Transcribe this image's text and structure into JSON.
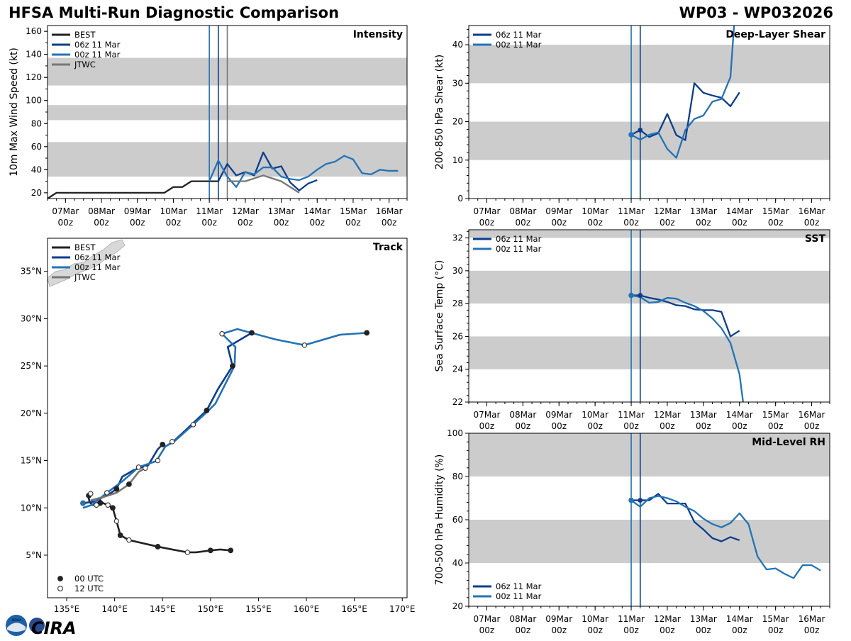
{
  "header": {
    "title_left": "HFSA Multi-Run Diagnostic Comparison",
    "title_right": "WP03 - WP032026"
  },
  "logo": {
    "text": "CIRA",
    "noaa_text": "NOAA"
  },
  "colors": {
    "best": "#222222",
    "run06": "#0b3d8c",
    "run00": "#2373b5",
    "jtwc": "#777777",
    "band": "#cccccc"
  },
  "date_ticks": [
    {
      "day": 7,
      "label": "07Mar",
      "sub": "00z"
    },
    {
      "day": 8,
      "label": "08Mar",
      "sub": "00z"
    },
    {
      "day": 9,
      "label": "09Mar",
      "sub": "00z"
    },
    {
      "day": 10,
      "label": "10Mar",
      "sub": "00z"
    },
    {
      "day": 11,
      "label": "11Mar",
      "sub": "00z"
    },
    {
      "day": 12,
      "label": "12Mar",
      "sub": "00z"
    },
    {
      "day": 13,
      "label": "13Mar",
      "sub": "00z"
    },
    {
      "day": 14,
      "label": "14Mar",
      "sub": "00z"
    },
    {
      "day": 15,
      "label": "15Mar",
      "sub": "00z"
    },
    {
      "day": 16,
      "label": "16Mar",
      "sub": "00z"
    }
  ],
  "chart_data": [
    {
      "id": "intensity",
      "type": "line",
      "title": "Intensity",
      "ylabel": "10m Max Wind Speed (kt)",
      "xlim": [
        6.5,
        16.5
      ],
      "ylim": [
        15,
        165
      ],
      "yticks": [
        20,
        40,
        60,
        80,
        100,
        120,
        140,
        160
      ],
      "bands": [
        [
          34,
          64
        ],
        [
          83,
          96
        ],
        [
          113,
          137
        ]
      ],
      "vlines": [
        {
          "x": 11.0,
          "series": "00z 11 Mar"
        },
        {
          "x": 11.25,
          "series": "06z 11 Mar"
        },
        {
          "x": 11.5,
          "series": "JTWC"
        }
      ],
      "legend": [
        "BEST",
        "06z 11 Mar",
        "00z 11 Mar",
        "JTWC"
      ],
      "legend_position": "top-left",
      "series": [
        {
          "name": "BEST",
          "x": [
            6.5,
            6.75,
            7.0,
            7.5,
            8.0,
            8.5,
            9.0,
            9.5,
            9.75,
            10.0,
            10.25,
            10.5,
            10.75,
            11.0,
            11.25
          ],
          "y": [
            15,
            20,
            20,
            20,
            20,
            20,
            20,
            20,
            20,
            25,
            25,
            30,
            30,
            30,
            30
          ]
        },
        {
          "name": "06z 11 Mar",
          "x": [
            11.25,
            11.5,
            11.75,
            12.0,
            12.25,
            12.5,
            12.75,
            13.0,
            13.25,
            13.5,
            13.75,
            14.0
          ],
          "y": [
            30,
            45,
            35,
            38,
            35,
            55,
            41,
            43,
            29,
            22,
            28,
            31
          ]
        },
        {
          "name": "00z 11 Mar",
          "x": [
            11.0,
            11.25,
            11.5,
            11.75,
            12.0,
            12.25,
            12.5,
            12.75,
            13.0,
            13.25,
            13.5,
            13.75,
            14.0,
            14.25,
            14.5,
            14.75,
            15.0,
            15.25,
            15.5,
            15.75,
            16.0,
            16.25
          ],
          "y": [
            30,
            48,
            34,
            25,
            38,
            36,
            42,
            42,
            34,
            32,
            31,
            34,
            40,
            45,
            47,
            52,
            49,
            37,
            36,
            40,
            39,
            39
          ]
        },
        {
          "name": "JTWC",
          "x": [
            11.5,
            12.0,
            12.5,
            13.0,
            13.5
          ],
          "y": [
            30,
            30,
            35,
            30,
            20
          ]
        }
      ]
    },
    {
      "id": "shear",
      "type": "line",
      "title": "Deep-Layer Shear",
      "ylabel": "200-850 hPa Shear (kt)",
      "xlim": [
        6.5,
        16.5
      ],
      "ylim": [
        0,
        45
      ],
      "yticks": [
        0,
        10,
        20,
        30,
        40
      ],
      "bands": [
        [
          10,
          20
        ],
        [
          30,
          40
        ]
      ],
      "vlines": [
        {
          "x": 11.0,
          "series": "00z 11 Mar"
        },
        {
          "x": 11.25,
          "series": "06z 11 Mar"
        }
      ],
      "legend": [
        "06z 11 Mar",
        "00z 11 Mar"
      ],
      "legend_position": "top-left",
      "series": [
        {
          "name": "06z 11 Mar",
          "x": [
            11.0,
            11.25,
            11.5,
            11.75,
            12.0,
            12.25,
            12.5,
            12.75,
            13.0,
            13.25,
            13.5,
            13.75,
            14.0
          ],
          "y": [
            16.6,
            17.8,
            16.0,
            17.0,
            22.0,
            16.5,
            15.2,
            30.0,
            27.5,
            26.8,
            26.2,
            24.0,
            27.6
          ]
        },
        {
          "name": "00z 11 Mar",
          "x": [
            11.0,
            11.25,
            11.5,
            11.75,
            12.0,
            12.25,
            12.5,
            12.75,
            13.0,
            13.25,
            13.5,
            13.75,
            13.85
          ],
          "y": [
            16.6,
            15.3,
            16.6,
            17.2,
            12.9,
            10.6,
            17.8,
            20.7,
            21.6,
            25.2,
            25.9,
            31.6,
            45.0
          ]
        }
      ]
    },
    {
      "id": "sst",
      "type": "line",
      "title": "SST",
      "ylabel": "Sea Surface Temp (°C)",
      "xlim": [
        6.5,
        16.5
      ],
      "ylim": [
        22,
        32.5
      ],
      "yticks": [
        22,
        24,
        26,
        28,
        30,
        32
      ],
      "bands": [
        [
          24,
          26
        ],
        [
          28,
          30
        ],
        [
          32,
          32.5
        ]
      ],
      "vlines": [
        {
          "x": 11.0,
          "series": "00z 11 Mar"
        },
        {
          "x": 11.25,
          "series": "06z 11 Mar"
        }
      ],
      "legend": [
        "06z 11 Mar",
        "00z 11 Mar"
      ],
      "legend_position": "top-left",
      "series": [
        {
          "name": "06z 11 Mar",
          "x": [
            11.0,
            11.25,
            11.5,
            11.75,
            12.0,
            12.25,
            12.5,
            12.75,
            13.0,
            13.25,
            13.5,
            13.75,
            14.0
          ],
          "y": [
            28.5,
            28.5,
            28.35,
            28.25,
            28.1,
            27.9,
            27.85,
            27.65,
            27.6,
            27.6,
            27.5,
            26.0,
            26.35
          ]
        },
        {
          "name": "00z 11 Mar",
          "x": [
            11.0,
            11.25,
            11.5,
            11.75,
            12.0,
            12.25,
            12.5,
            12.75,
            13.0,
            13.25,
            13.5,
            13.75,
            14.0,
            14.1
          ],
          "y": [
            28.5,
            28.4,
            28.05,
            28.1,
            28.35,
            28.3,
            28.05,
            27.85,
            27.55,
            27.1,
            26.5,
            25.6,
            23.7,
            22.0
          ]
        }
      ]
    },
    {
      "id": "rh",
      "type": "line",
      "title": "Mid-Level RH",
      "ylabel": "700-500 hPa Humidity (%)",
      "xlim": [
        6.5,
        16.5
      ],
      "ylim": [
        20,
        100
      ],
      "yticks": [
        20,
        40,
        60,
        80,
        100
      ],
      "bands": [
        [
          40,
          60
        ],
        [
          80,
          100
        ]
      ],
      "vlines": [
        {
          "x": 11.0,
          "series": "00z 11 Mar"
        },
        {
          "x": 11.25,
          "series": "06z 11 Mar"
        }
      ],
      "legend": [
        "06z 11 Mar",
        "00z 11 Mar"
      ],
      "legend_position": "bottom-left",
      "series": [
        {
          "name": "06z 11 Mar",
          "x": [
            11.0,
            11.25,
            11.5,
            11.75,
            12.0,
            12.25,
            12.5,
            12.75,
            13.0,
            13.25,
            13.5,
            13.75,
            14.0
          ],
          "y": [
            69,
            69,
            69,
            72,
            67.5,
            67.5,
            67.5,
            59,
            55.5,
            51.5,
            50.0,
            52.0,
            50.5
          ]
        },
        {
          "name": "00z 11 Mar",
          "x": [
            11.0,
            11.25,
            11.5,
            11.75,
            12.0,
            12.25,
            12.5,
            12.75,
            13.0,
            13.25,
            13.5,
            13.75,
            14.0,
            14.25,
            14.5,
            14.75,
            15.0,
            15.25,
            15.5,
            15.75,
            16.0,
            16.25
          ],
          "y": [
            69,
            66,
            70,
            71,
            70,
            68.5,
            66,
            64,
            60.5,
            58,
            56.5,
            58.5,
            63,
            58,
            43,
            37,
            37.5,
            35,
            33,
            39,
            39,
            36.5
          ]
        }
      ]
    },
    {
      "id": "track",
      "type": "line",
      "title": "Track",
      "xlim": [
        133,
        170.5
      ],
      "ylim": [
        0.5,
        38.5
      ],
      "xticks": [
        135,
        140,
        145,
        150,
        155,
        160,
        165,
        170
      ],
      "xtick_labels": [
        "135°E",
        "140°E",
        "145°E",
        "150°E",
        "155°E",
        "160°E",
        "165°E",
        "170°E"
      ],
      "yticks": [
        5,
        10,
        15,
        20,
        25,
        30,
        35
      ],
      "ytick_labels": [
        "5°N",
        "10°N",
        "15°N",
        "20°N",
        "25°N",
        "30°N",
        "35°N"
      ],
      "legend": [
        "BEST",
        "06z 11 Mar",
        "00z 11 Mar",
        "JTWC"
      ],
      "legend_position": "top-left",
      "marker_legend": [
        "00 UTC",
        "12 UTC"
      ],
      "series": [
        {
          "name": "BEST",
          "lon": [
            152.1,
            151.0,
            150.0,
            148.5,
            147.6,
            146.0,
            144.5,
            141.5,
            140.6,
            140.2,
            139.8,
            139.3,
            138.8,
            138.5,
            138.1,
            137.7,
            137.4,
            137.3,
            137.3,
            137.5
          ],
          "lat": [
            5.5,
            5.6,
            5.5,
            5.3,
            5.3,
            5.6,
            5.9,
            6.6,
            7.1,
            8.6,
            10.0,
            10.3,
            10.5,
            10.8,
            10.4,
            10.3,
            10.6,
            11.0,
            11.3,
            11.5
          ],
          "m00_lon": [
            152.1,
            150.0,
            144.5,
            140.6,
            139.8,
            138.5,
            137.3
          ],
          "m00_lat": [
            5.5,
            5.5,
            5.9,
            7.1,
            10.0,
            10.5,
            11.3
          ],
          "m12_lon": [
            147.6,
            141.5,
            140.2,
            139.3,
            138.1,
            137.5
          ],
          "m12_lat": [
            5.3,
            6.6,
            8.6,
            10.3,
            10.3,
            11.5
          ]
        },
        {
          "name": "06z 11 Mar",
          "lon": [
            136.8,
            138.0,
            138.7,
            139.5,
            140.2,
            140.8,
            142.0,
            143.5,
            144.5,
            145.0,
            145.3,
            146.0,
            147.5,
            149.6,
            150.8,
            152.3,
            152.3,
            151.8,
            154.3
          ],
          "lat": [
            10.5,
            10.7,
            11.1,
            11.5,
            12.0,
            13.3,
            14.0,
            14.5,
            16.2,
            16.7,
            16.5,
            16.9,
            18.3,
            20.3,
            22.6,
            25.0,
            25.0,
            27.0,
            28.5
          ],
          "m00_lon": [
            140.2,
            145.0,
            149.6,
            152.3,
            154.3
          ],
          "m00_lat": [
            12.0,
            16.7,
            20.3,
            25.0,
            28.5
          ],
          "m12_lon": [],
          "m12_lat": []
        },
        {
          "name": "00z 11 Mar",
          "lon": [
            136.7,
            137.6,
            139.2,
            140.8,
            142.5,
            144.5,
            144.5,
            145.3,
            146.2,
            148.2,
            149.7,
            150.5,
            152.5,
            152.6,
            151.2,
            152.8,
            156.8,
            159.8,
            163.5,
            166.3
          ],
          "lat": [
            10.0,
            10.3,
            11.6,
            12.8,
            14.3,
            15.0,
            15.2,
            16.5,
            17.0,
            18.8,
            20.2,
            21.0,
            25.0,
            27.0,
            28.4,
            28.9,
            27.8,
            27.2,
            28.3,
            28.5
          ],
          "m00_lon": [
            136.7,
            166.3
          ],
          "m00_lat": [
            10.5,
            28.5
          ],
          "m12_lon": [
            139.2,
            142.5,
            144.5,
            146.0,
            148.2,
            151.2,
            159.8
          ],
          "m12_lat": [
            11.6,
            14.3,
            15.0,
            17.0,
            18.8,
            28.4,
            27.2
          ]
        },
        {
          "name": "JTWC",
          "lon": [
            137.5,
            139.0,
            140.2,
            141.5,
            142.5,
            143.2
          ],
          "lat": [
            10.8,
            11.2,
            11.6,
            12.5,
            13.8,
            14.2
          ],
          "m00_lon": [
            141.5
          ],
          "m00_lat": [
            12.5
          ],
          "m12_lon": [
            143.2
          ],
          "m12_lat": [
            14.2
          ]
        }
      ]
    }
  ]
}
